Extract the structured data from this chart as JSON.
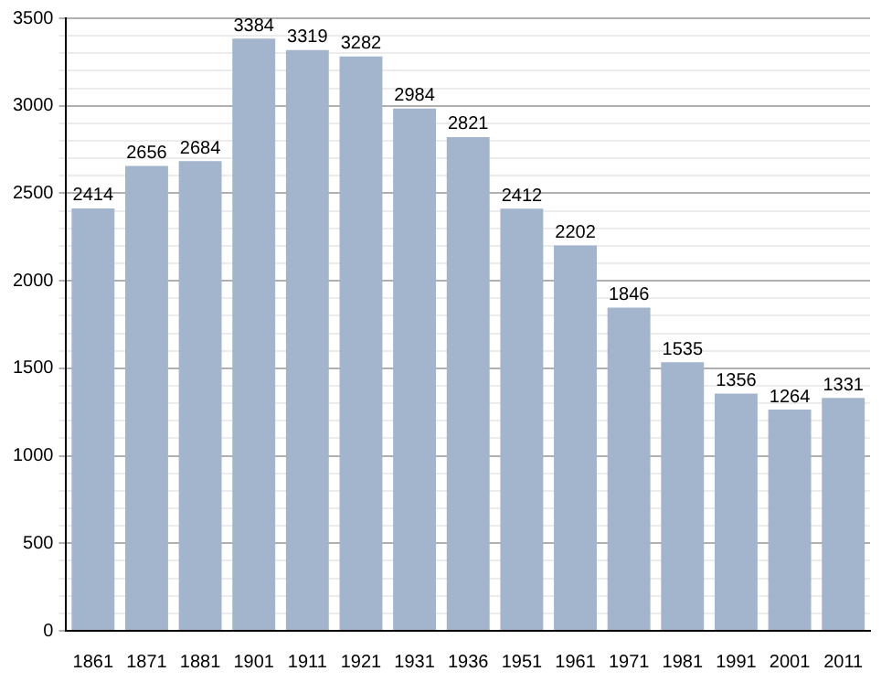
{
  "chart_data": {
    "type": "bar",
    "categories": [
      "1861",
      "1871",
      "1881",
      "1901",
      "1911",
      "1921",
      "1931",
      "1936",
      "1951",
      "1961",
      "1971",
      "1981",
      "1991",
      "2001",
      "2011"
    ],
    "values": [
      2414,
      2656,
      2684,
      3384,
      3319,
      3282,
      2984,
      2821,
      2412,
      2202,
      1846,
      1535,
      1356,
      1264,
      1331
    ],
    "color": "#a2b5cd",
    "ylim": [
      0,
      3500
    ],
    "yticks": [
      0,
      {
        "value": 100,
        "label": null
      },
      {
        "value": 200,
        "label": null
      },
      {
        "value": 300,
        "label": null
      },
      {
        "value": 400,
        "label": null
      },
      500,
      {
        "value": 600,
        "label": null
      },
      {
        "value": 700,
        "label": null
      },
      {
        "value": 800,
        "label": null
      },
      {
        "value": 900,
        "label": null
      },
      1000,
      {
        "value": 1100,
        "label": null
      },
      {
        "value": 1200,
        "label": null
      },
      {
        "value": 1300,
        "label": null
      },
      {
        "value": 1400,
        "label": null
      },
      1500,
      {
        "value": 1600,
        "label": null
      },
      {
        "value": 1700,
        "label": null
      },
      {
        "value": 1800,
        "label": null
      },
      {
        "value": 1900,
        "label": null
      },
      2000,
      {
        "value": 2100,
        "label": null
      },
      {
        "value": 2200,
        "label": null
      },
      {
        "value": 2300,
        "label": null
      },
      {
        "value": 2400,
        "label": null
      },
      2500,
      {
        "value": 2600,
        "label": null
      },
      {
        "value": 2700,
        "label": null
      },
      {
        "value": 2800,
        "label": null
      },
      {
        "value": 2900,
        "label": null
      },
      3000,
      {
        "value": 3100,
        "label": null
      },
      {
        "value": 3200,
        "label": null
      },
      {
        "value": 3300,
        "label": null
      },
      {
        "value": 3400,
        "label": null
      },
      3500
    ],
    "grid": "y",
    "data_labels": true
  }
}
